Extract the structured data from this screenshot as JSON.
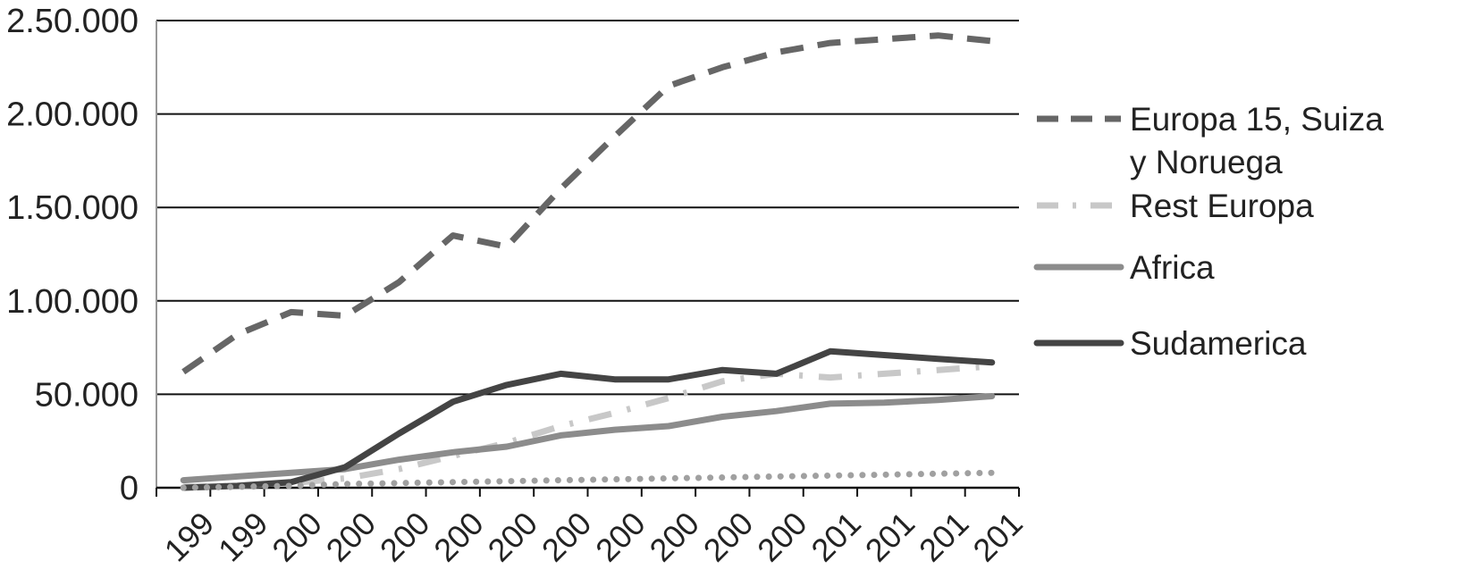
{
  "chart_data": {
    "type": "line",
    "categories": [
      "199",
      "199",
      "200",
      "200",
      "200",
      "200",
      "200",
      "200",
      "200",
      "200",
      "200",
      "200",
      "201",
      "201",
      "201",
      "201"
    ],
    "y_ticks": [
      "0",
      "50.000",
      "1.00.000",
      "1.50.000",
      "2.00.000",
      "2.50.000"
    ],
    "ylim": [
      0,
      250000
    ],
    "grid": true,
    "legend_position": "right",
    "series": [
      {
        "name": "Europa 15, Suiza y Noruega",
        "name_lines": [
          "Europa 15, Suiza",
          "y Noruega"
        ],
        "color": "#666666",
        "style": "dashed",
        "values": [
          62000,
          82000,
          94000,
          92000,
          110000,
          135000,
          129000,
          160000,
          188000,
          215000,
          225000,
          233000,
          238000,
          240000,
          242000,
          239000
        ]
      },
      {
        "name": "Rest Europa",
        "name_lines": [
          "Rest Europa"
        ],
        "color": "#c8c8c8",
        "style": "dashdot",
        "values": [
          500,
          1000,
          2500,
          5000,
          10000,
          17000,
          24000,
          33000,
          40000,
          48000,
          57000,
          61000,
          59000,
          61000,
          63000,
          65000
        ]
      },
      {
        "name": "Africa",
        "name_lines": [
          "Africa"
        ],
        "color": "#8c8c8c",
        "style": "solid",
        "values": [
          4000,
          6000,
          8000,
          10000,
          15000,
          19000,
          22000,
          28000,
          31000,
          33000,
          38000,
          41000,
          45000,
          45500,
          47000,
          49000
        ]
      },
      {
        "name": "Sudamerica",
        "name_lines": [
          "Sudamerica"
        ],
        "color": "#444444",
        "style": "solid",
        "values": [
          0,
          1000,
          3000,
          11000,
          29000,
          46000,
          55000,
          61000,
          58000,
          58000,
          63000,
          61000,
          73000,
          71000,
          69000,
          67000
        ]
      },
      {
        "name": "",
        "name_lines": [],
        "color": "#a0a0a0",
        "style": "dotted",
        "values": [
          0,
          500,
          1000,
          2000,
          2500,
          3000,
          3500,
          4000,
          4500,
          5000,
          5500,
          6000,
          6500,
          7000,
          7500,
          8000
        ]
      }
    ]
  }
}
